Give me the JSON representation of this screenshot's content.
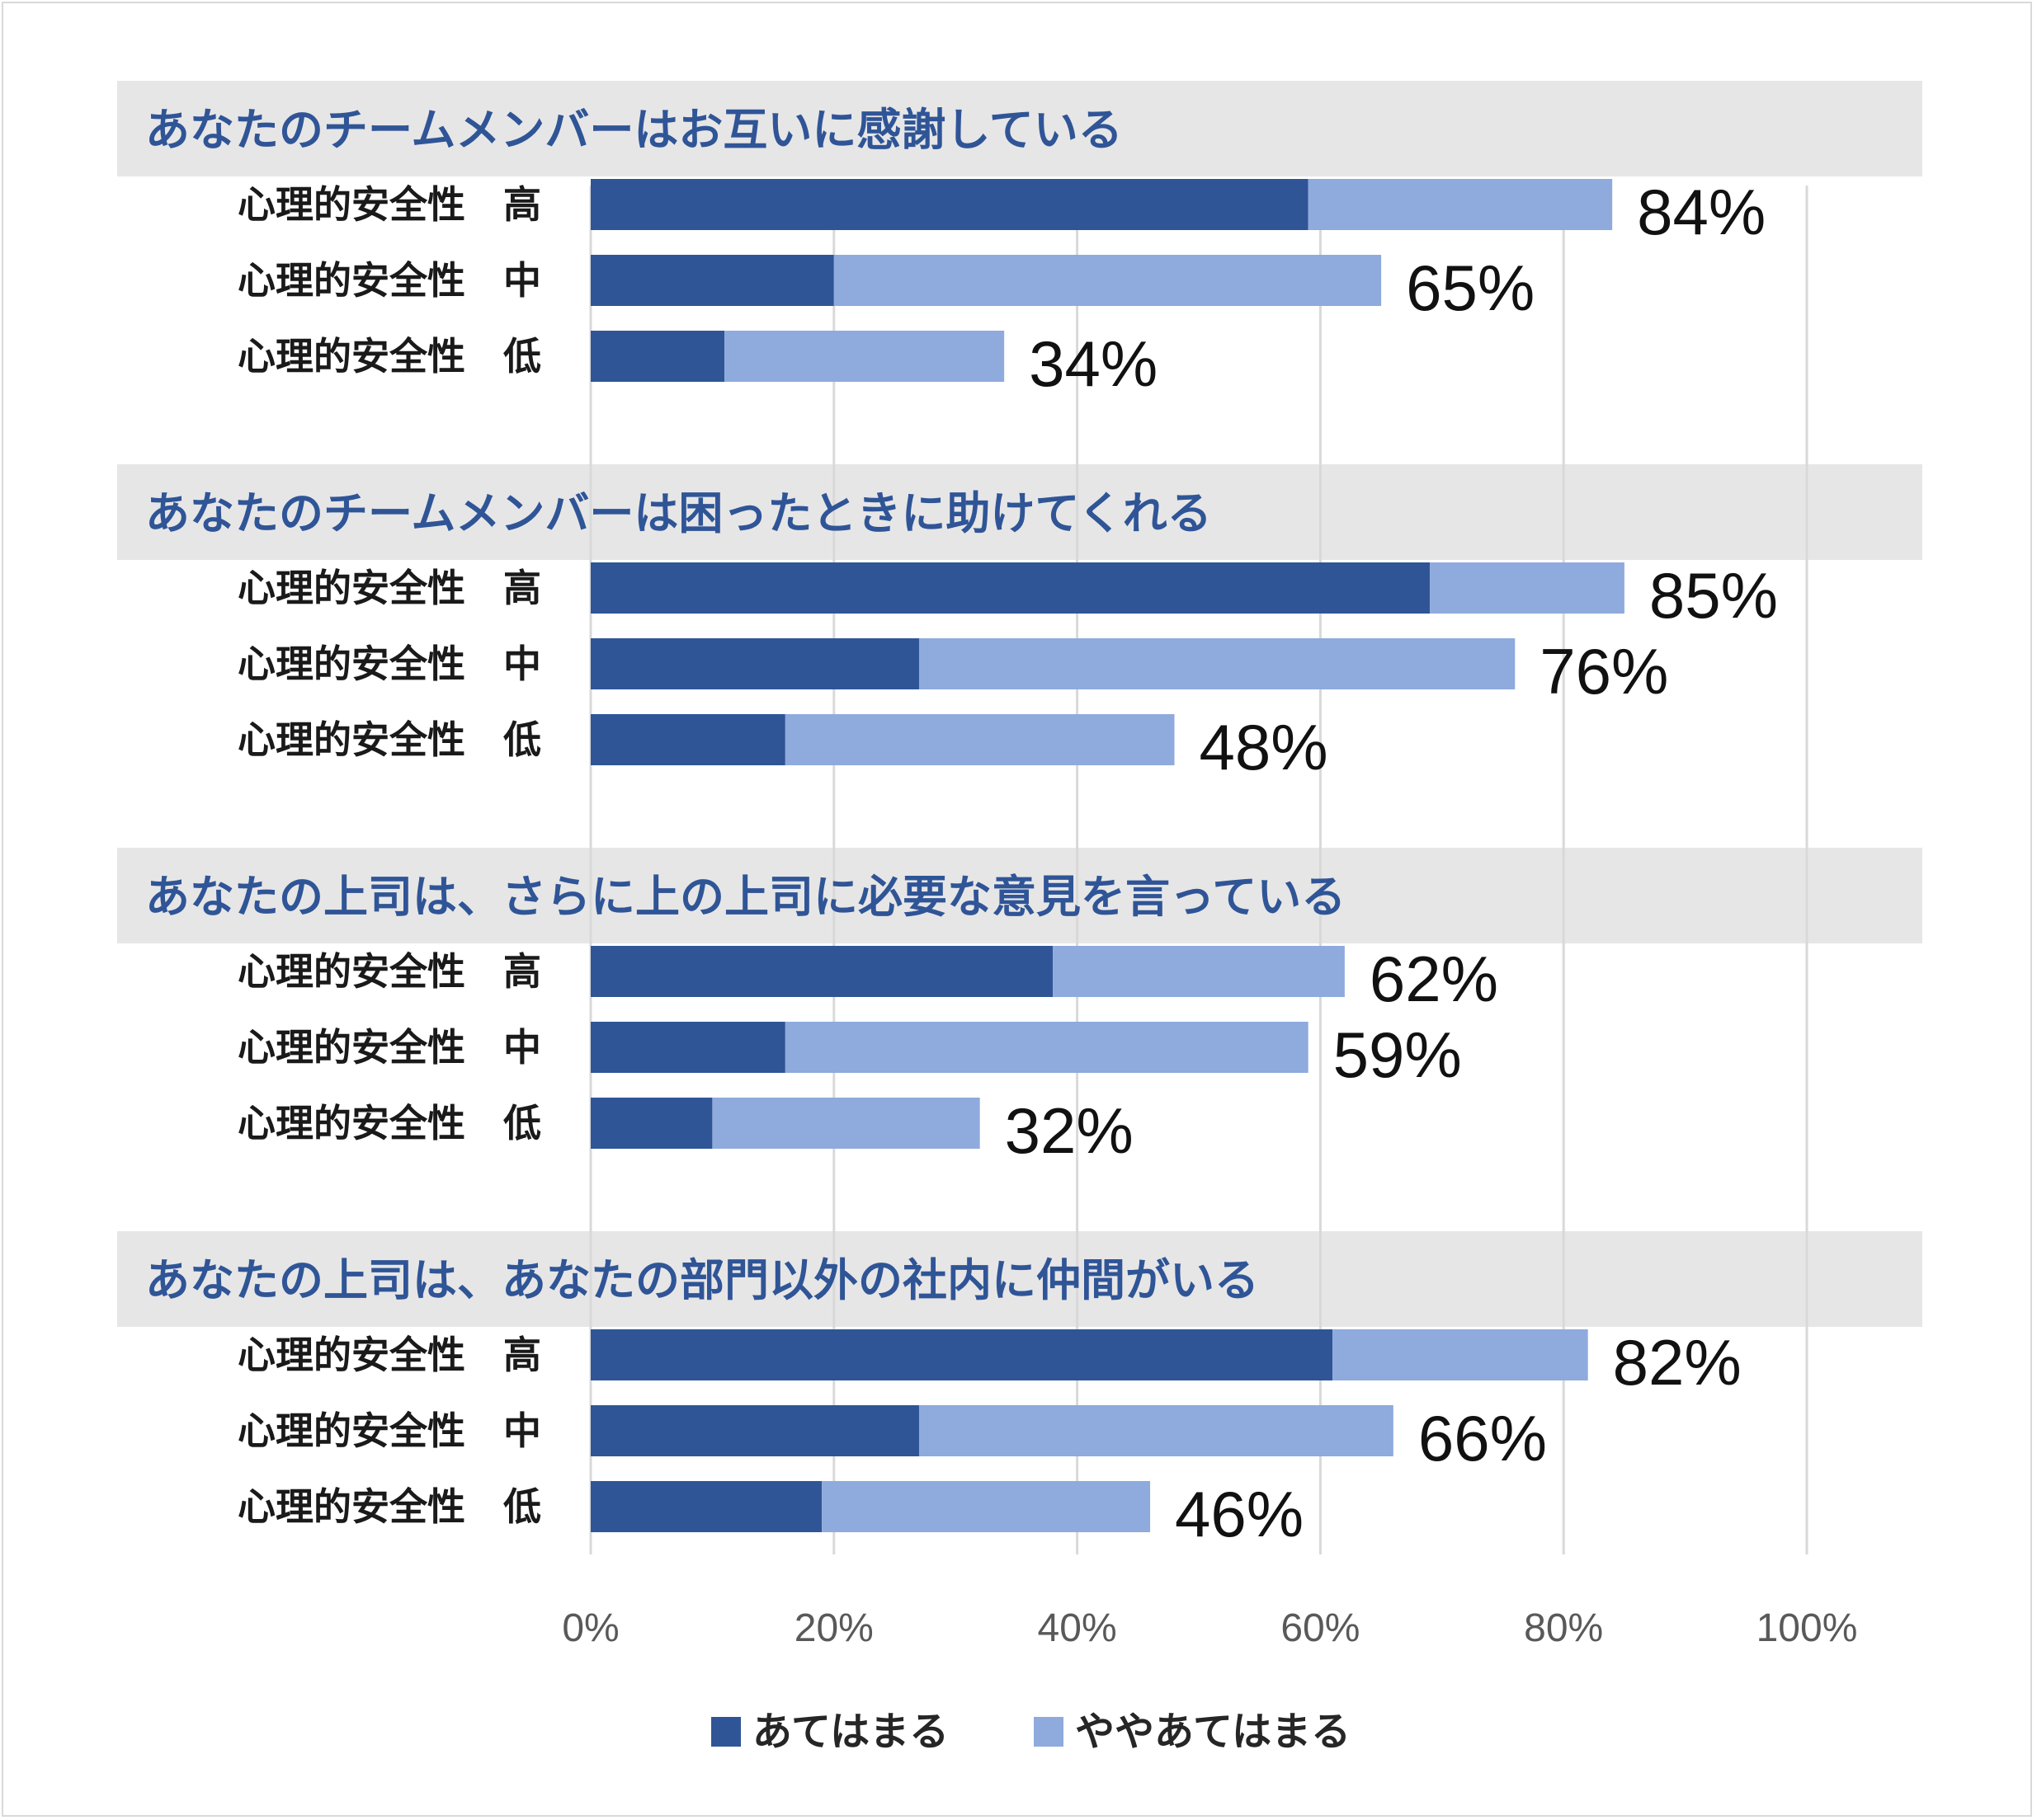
{
  "colors": {
    "dark": "#2f5597",
    "light": "#8faadc",
    "band": "#e7e6e6",
    "grid": "#d9d9d9",
    "title": "#2f5597"
  },
  "chart_data": {
    "type": "bar",
    "orientation": "horizontal",
    "stacked": true,
    "xlim": [
      0,
      100
    ],
    "x_ticks": [
      "0%",
      "20%",
      "40%",
      "60%",
      "80%",
      "100%"
    ],
    "grid": true,
    "legend_position": "bottom",
    "series_names": [
      "あてはまる",
      "ややあてはまる"
    ],
    "groups": [
      {
        "title": "あなたのチームメンバーはお互いに感謝している",
        "rows": [
          {
            "label": "心理的安全性　高",
            "values": [
              59,
              25
            ],
            "total_label": "84%"
          },
          {
            "label": "心理的安全性　中",
            "values": [
              20,
              45
            ],
            "total_label": "65%"
          },
          {
            "label": "心理的安全性　低",
            "values": [
              11,
              23
            ],
            "total_label": "34%"
          }
        ]
      },
      {
        "title": "あなたのチームメンバーは困ったときに助けてくれる",
        "rows": [
          {
            "label": "心理的安全性　高",
            "values": [
              69,
              16
            ],
            "total_label": "85%"
          },
          {
            "label": "心理的安全性　中",
            "values": [
              27,
              49
            ],
            "total_label": "76%"
          },
          {
            "label": "心理的安全性　低",
            "values": [
              16,
              32
            ],
            "total_label": "48%"
          }
        ]
      },
      {
        "title": "あなたの上司は、さらに上の上司に必要な意見を言っている",
        "rows": [
          {
            "label": "心理的安全性　高",
            "values": [
              38,
              24
            ],
            "total_label": "62%"
          },
          {
            "label": "心理的安全性　中",
            "values": [
              16,
              43
            ],
            "total_label": "59%"
          },
          {
            "label": "心理的安全性　低",
            "values": [
              10,
              22
            ],
            "total_label": "32%"
          }
        ]
      },
      {
        "title": "あなたの上司は、あなたの部門以外の社内に仲間がいる",
        "rows": [
          {
            "label": "心理的安全性　高",
            "values": [
              61,
              21
            ],
            "total_label": "82%"
          },
          {
            "label": "心理的安全性　中",
            "values": [
              27,
              39
            ],
            "total_label": "66%"
          },
          {
            "label": "心理的安全性　低",
            "values": [
              19,
              27
            ],
            "total_label": "46%"
          }
        ]
      }
    ]
  }
}
